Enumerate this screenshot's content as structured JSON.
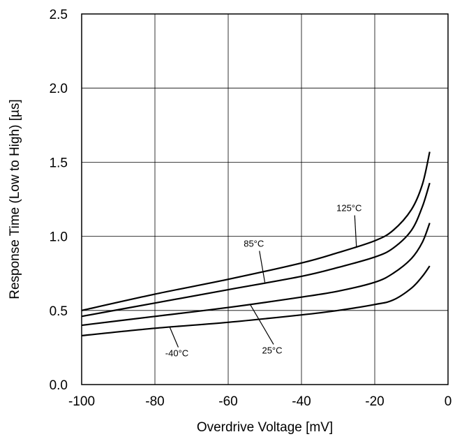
{
  "chart_data": {
    "type": "line",
    "xlabel": "Overdrive Voltage [mV]",
    "ylabel": "Response Time (Low to High) [µs]",
    "xlim": [
      -100,
      0
    ],
    "ylim": [
      0.0,
      2.5
    ],
    "x_ticks": [
      "-100",
      "-80",
      "-60",
      "-40",
      "-20",
      "0"
    ],
    "y_ticks": [
      "0.0",
      "0.5",
      "1.0",
      "1.5",
      "2.0",
      "2.5"
    ],
    "grid": true,
    "series": [
      {
        "name": "125°C",
        "points": [
          [
            -100,
            0.5
          ],
          [
            -80,
            0.61
          ],
          [
            -60,
            0.71
          ],
          [
            -40,
            0.82
          ],
          [
            -30,
            0.89
          ],
          [
            -20,
            0.97
          ],
          [
            -15,
            1.04
          ],
          [
            -10,
            1.18
          ],
          [
            -7,
            1.35
          ],
          [
            -5,
            1.57
          ]
        ]
      },
      {
        "name": "85°C",
        "points": [
          [
            -100,
            0.46
          ],
          [
            -80,
            0.55
          ],
          [
            -60,
            0.64
          ],
          [
            -40,
            0.73
          ],
          [
            -30,
            0.79
          ],
          [
            -20,
            0.86
          ],
          [
            -15,
            0.92
          ],
          [
            -10,
            1.04
          ],
          [
            -7,
            1.2
          ],
          [
            -5,
            1.36
          ]
        ]
      },
      {
        "name": "25°C",
        "points": [
          [
            -100,
            0.4
          ],
          [
            -80,
            0.46
          ],
          [
            -60,
            0.52
          ],
          [
            -40,
            0.59
          ],
          [
            -30,
            0.63
          ],
          [
            -20,
            0.69
          ],
          [
            -15,
            0.75
          ],
          [
            -10,
            0.85
          ],
          [
            -7,
            0.96
          ],
          [
            -5,
            1.09
          ]
        ]
      },
      {
        "name": "-40°C",
        "points": [
          [
            -100,
            0.33
          ],
          [
            -80,
            0.38
          ],
          [
            -60,
            0.42
          ],
          [
            -40,
            0.47
          ],
          [
            -30,
            0.5
          ],
          [
            -20,
            0.54
          ],
          [
            -15,
            0.57
          ],
          [
            -10,
            0.65
          ],
          [
            -7,
            0.73
          ],
          [
            -5,
            0.8
          ]
        ]
      }
    ],
    "annotations": [
      {
        "text": "125°C",
        "label_at": [
          -27,
          1.17
        ],
        "points_to": [
          -25,
          0.93
        ]
      },
      {
        "text": "85°C",
        "label_at": [
          -53,
          0.93
        ],
        "points_to": [
          -50,
          0.69
        ]
      },
      {
        "text": "25°C",
        "label_at": [
          -48,
          0.21
        ],
        "points_to": [
          -54,
          0.54
        ]
      },
      {
        "text": "-40°C",
        "label_at": [
          -74,
          0.19
        ],
        "points_to": [
          -76,
          0.39
        ]
      }
    ]
  }
}
